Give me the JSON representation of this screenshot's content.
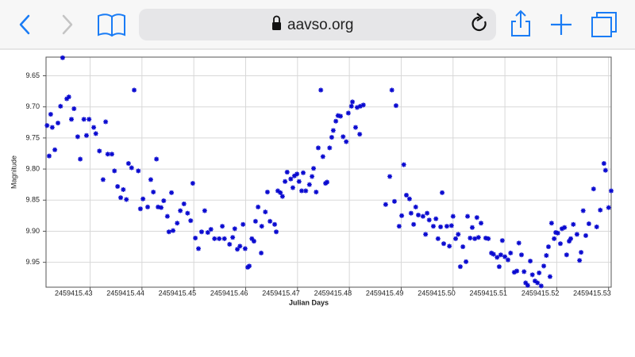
{
  "browser": {
    "url": "aavso.org"
  },
  "chart_data": {
    "type": "scatter",
    "x_label": "Julian Days",
    "y_label": "Magnitude",
    "color": "#0a0ad0",
    "grid": true,
    "y_inverted": true,
    "xlim": [
      2459415.4215,
      2459415.5305
    ],
    "ylim": [
      9.62,
      9.99
    ],
    "xticks": [
      2459415.43,
      2459415.44,
      2459415.45,
      2459415.46,
      2459415.47,
      2459415.48,
      2459415.49,
      {
        "value": 2459415.5,
        "label": "2459415.50"
      },
      2459415.51,
      2459415.52,
      2459415.53
    ],
    "yticks": [
      9.65,
      {
        "value": 9.7,
        "label": "9.70"
      },
      9.75,
      {
        "value": 9.8,
        "label": "9.80"
      },
      9.85,
      {
        "value": 9.9,
        "label": "9.90"
      },
      9.95
    ],
    "x": [
      2459415.4217,
      2459415.4221,
      2459415.4224,
      2459415.4227,
      2459415.4232,
      2459415.4238,
      2459415.4243,
      2459415.4247,
      2459415.4255,
      2459415.4259,
      2459415.4264,
      2459415.4269,
      2459415.4276,
      2459415.4281,
      2459415.4288,
      2459415.4293,
      2459415.4298,
      2459415.4307,
      2459415.4311,
      2459415.4318,
      2459415.4325,
      2459415.433,
      2459415.4334,
      2459415.4342,
      2459415.4347,
      2459415.4353,
      2459415.4359,
      2459415.4364,
      2459415.437,
      2459415.4374,
      2459415.438,
      2459415.4385,
      2459415.4393,
      2459415.4397,
      2459415.4402,
      2459415.4411,
      2459415.4417,
      2459415.4422,
      2459415.4428,
      2459415.4431,
      2459415.4437,
      2459415.4442,
      2459415.4449,
      2459415.4452,
      2459415.4457,
      2459415.446,
      2459415.4468,
      2459415.4474,
      2459415.4481,
      2459415.4488,
      2459415.4494,
      2459415.4498,
      2459415.4503,
      2459415.4509,
      2459415.4515,
      2459415.4521,
      2459415.4527,
      2459415.4533,
      2459415.454,
      2459415.4549,
      2459415.4555,
      2459415.4559,
      2459415.4569,
      2459415.4575,
      2459415.4579,
      2459415.4584,
      2459415.4589,
      2459415.4595,
      2459415.4599,
      2459415.4604,
      2459415.4607,
      2459415.4612,
      2459415.4616,
      2459415.4619,
      2459415.4624,
      2459415.463,
      2459415.4631,
      2459415.4638,
      2459415.4642,
      2459415.4647,
      2459415.4656,
      2459415.4659,
      2459415.4662,
      2459415.4667,
      2459415.4671,
      2459415.4676,
      2459415.468,
      2459415.4687,
      2459415.4691,
      2459415.4694,
      2459415.4699,
      2459415.4703,
      2459415.4708,
      2459415.4711,
      2459415.4716,
      2459415.4723,
      2459415.4728,
      2459415.4731,
      2459415.4736,
      2459415.474,
      2459415.4745,
      2459415.4749,
      2459415.4754,
      2459415.4757,
      2459415.4762,
      2459415.4766,
      2459415.4769,
      2459415.4774,
      2459415.4778,
      2459415.4783,
      2459415.4788,
      2459415.4794,
      2459415.4798,
      2459415.4804,
      2459415.4806,
      2459415.4812,
      2459415.4815,
      2459415.482,
      2459415.4821,
      2459415.4827,
      2459415.487,
      2459415.4878,
      2459415.4882,
      2459415.4887,
      2459415.489,
      2459415.4896,
      2459415.4901,
      2459415.4905,
      2459415.491,
      2459415.4916,
      2459415.4919,
      2459415.4924,
      2459415.4928,
      2459415.4933,
      2459415.4942,
      2459415.4947,
      2459415.495,
      2459415.4954,
      2459415.4962,
      2459415.4967,
      2459415.4971,
      2459415.4976,
      2459415.4979,
      2459415.4982,
      2459415.4988,
      2459415.4993,
      2459415.4997,
      2459415.5,
      2459415.5005,
      2459415.501,
      2459415.5014,
      2459415.5019,
      2459415.5025,
      2459415.5028,
      2459415.5033,
      2459415.5037,
      2459415.5042,
      2459415.5046,
      2459415.5049,
      2459415.5054,
      2459415.5063,
      2459415.5068,
      2459415.5074,
      2459415.5078,
      2459415.5085,
      2459415.5089,
      2459415.5092,
      2459415.5095,
      2459415.51,
      2459415.5106,
      2459415.5111,
      2459415.5118,
      2459415.5123,
      2459415.5127,
      2459415.5132,
      2459415.5137,
      2459415.514,
      2459415.5144,
      2459415.5149,
      2459415.5153,
      2459415.5158,
      2459415.5163,
      2459415.5166,
      2459415.517,
      2459415.5175,
      2459415.518,
      2459415.5184,
      2459415.5187,
      2459415.519,
      2459415.5195,
      2459415.5198,
      2459415.5202,
      2459415.5207,
      2459415.521,
      2459415.5215,
      2459415.5219,
      2459415.5224,
      2459415.5227,
      2459415.5232,
      2459415.5239,
      2459415.5244,
      2459415.5247,
      2459415.5251,
      2459415.5256,
      2459415.5262,
      2459415.5271,
      2459415.5277,
      2459415.5284,
      2459415.5291,
      2459415.5294,
      2459415.53,
      2459415.5305
    ],
    "values": [
      9.73,
      9.779,
      9.712,
      9.733,
      9.769,
      9.726,
      9.699,
      9.621,
      9.687,
      9.684,
      9.72,
      9.703,
      9.748,
      9.784,
      9.72,
      9.746,
      9.72,
      9.733,
      9.743,
      9.771,
      9.817,
      9.724,
      9.776,
      9.776,
      9.803,
      9.828,
      9.846,
      9.833,
      9.849,
      9.791,
      9.798,
      9.673,
      9.803,
      9.864,
      9.848,
      9.861,
      9.817,
      9.837,
      9.784,
      9.861,
      9.862,
      9.851,
      9.876,
      9.901,
      9.838,
      9.899,
      9.887,
      9.867,
      9.856,
      9.871,
      9.883,
      9.823,
      9.911,
      9.928,
      9.901,
      9.867,
      9.902,
      9.897,
      9.912,
      9.912,
      9.892,
      9.912,
      9.921,
      9.91,
      9.896,
      9.929,
      9.924,
      9.889,
      9.928,
      9.958,
      9.956,
      9.912,
      9.916,
      9.884,
      9.861,
      9.935,
      9.892,
      9.869,
      9.837,
      9.884,
      9.889,
      9.901,
      9.835,
      9.838,
      9.844,
      9.82,
      9.805,
      9.816,
      9.83,
      9.811,
      9.808,
      9.82,
      9.835,
      9.806,
      9.835,
      9.825,
      9.812,
      9.799,
      9.837,
      9.766,
      9.673,
      9.78,
      9.823,
      9.821,
      9.766,
      9.749,
      9.738,
      9.723,
      9.714,
      9.715,
      9.748,
      9.756,
      9.71,
      9.699,
      9.692,
      9.733,
      9.701,
      9.744,
      9.699,
      9.697,
      9.857,
      9.812,
      9.673,
      9.852,
      9.698,
      9.892,
      9.875,
      9.793,
      9.842,
      9.848,
      9.871,
      9.889,
      9.861,
      9.874,
      9.876,
      9.905,
      9.871,
      9.882,
      9.892,
      9.88,
      9.912,
      9.893,
      9.838,
      9.92,
      9.892,
      9.924,
      9.891,
      9.876,
      9.912,
      9.905,
      9.957,
      9.925,
      9.949,
      9.876,
      9.911,
      9.894,
      9.912,
      9.878,
      9.91,
      9.887,
      9.911,
      9.912,
      9.935,
      9.937,
      9.942,
      9.957,
      9.938,
      9.915,
      9.941,
      9.946,
      9.935,
      9.966,
      9.964,
      9.919,
      9.938,
      9.965,
      9.983,
      9.987,
      9.948,
      9.97,
      9.98,
      9.983,
      9.967,
      9.988,
      9.956,
      9.939,
      9.925,
      9.973,
      9.887,
      9.912,
      9.902,
      9.903,
      9.92,
      9.896,
      9.894,
      9.938,
      9.916,
      9.912,
      9.889,
      9.905,
      9.947,
      9.934,
      9.867,
      9.907,
      9.888,
      9.832,
      9.893,
      9.866,
      9.791,
      9.802,
      9.862,
      9.835
    ]
  }
}
